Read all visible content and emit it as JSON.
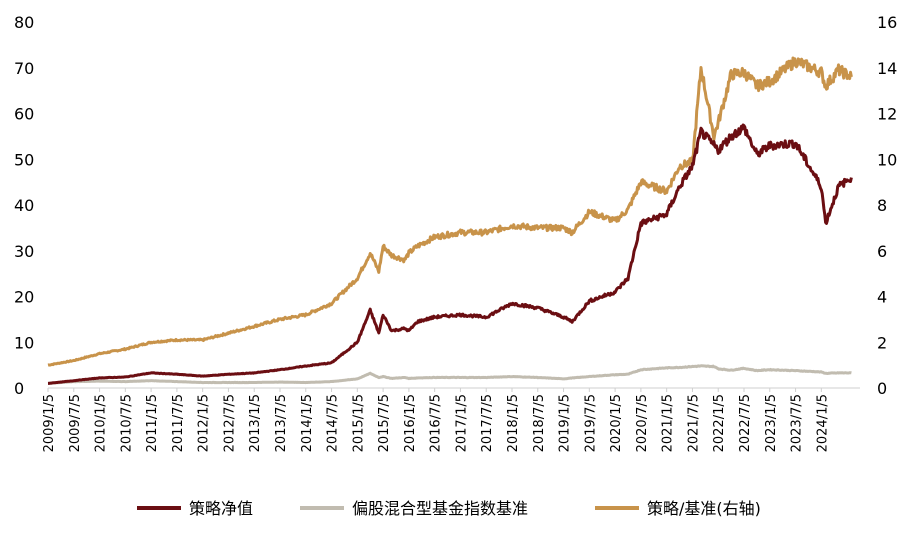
{
  "chart_data": {
    "type": "line",
    "title": "",
    "xlabel": "",
    "ylabel": "",
    "ylim": [
      0,
      80
    ],
    "ylim_right": [
      0,
      16
    ],
    "y_ticks": [
      "0",
      "10",
      "20",
      "30",
      "40",
      "50",
      "60",
      "70",
      "80"
    ],
    "y_right_ticks": [
      "0",
      "2",
      "4",
      "6",
      "8",
      "10",
      "12",
      "14",
      "16"
    ],
    "grid": false,
    "legend_position": "bottom",
    "x_tick_labels": [
      "2009/1/5",
      "2009/7/5",
      "2010/1/5",
      "2010/7/5",
      "2011/1/5",
      "2011/7/5",
      "2012/1/5",
      "2012/7/5",
      "2013/1/5",
      "2013/7/5",
      "2014/1/5",
      "2014/7/5",
      "2015/1/5",
      "2015/7/5",
      "2016/1/5",
      "2016/7/5",
      "2017/1/5",
      "2017/7/5",
      "2018/1/5",
      "2018/7/5",
      "2019/1/5",
      "2019/7/5",
      "2020/1/5",
      "2020/7/5",
      "2021/1/5",
      "2021/7/5",
      "2022/1/5",
      "2022/7/5",
      "2023/1/5",
      "2023/7/5",
      "2024/1/5"
    ],
    "x": [
      "2009-01",
      "2009-07",
      "2010-01",
      "2010-07",
      "2011-01",
      "2011-07",
      "2012-01",
      "2012-07",
      "2013-01",
      "2013-07",
      "2014-01",
      "2014-07",
      "2015-01",
      "2015-04",
      "2015-06",
      "2015-07",
      "2015-09",
      "2015-12",
      "2016-01",
      "2016-03",
      "2016-07",
      "2017-01",
      "2017-07",
      "2018-01",
      "2018-07",
      "2019-01",
      "2019-03",
      "2019-07",
      "2020-01",
      "2020-04",
      "2020-07",
      "2021-01",
      "2021-04",
      "2021-07",
      "2021-09",
      "2021-12",
      "2022-01",
      "2022-04",
      "2022-07",
      "2022-10",
      "2023-01",
      "2023-07",
      "2024-01",
      "2024-02",
      "2024-05",
      "2024-08"
    ],
    "series": [
      {
        "name": "策略净值",
        "color": "#6b0e12",
        "axis": "left",
        "values": [
          1.0,
          1.6,
          2.2,
          2.4,
          3.3,
          3.0,
          2.6,
          3.0,
          3.3,
          4.0,
          4.8,
          5.5,
          10.0,
          17.0,
          12.0,
          16.0,
          12.5,
          13.0,
          12.5,
          14.5,
          15.5,
          16.0,
          15.5,
          18.5,
          17.5,
          15.5,
          14.5,
          19.0,
          21.0,
          24.0,
          36.0,
          38.0,
          44.0,
          48.5,
          56.0,
          53.0,
          52.0,
          55.0,
          57.0,
          51.0,
          53.0,
          53.5,
          44.0,
          36.0,
          44.0,
          46.0
        ]
      },
      {
        "name": "偏股混合型基金指数基准",
        "color": "#c1bcb0",
        "axis": "left",
        "values": [
          1.0,
          1.4,
          1.5,
          1.4,
          1.6,
          1.4,
          1.2,
          1.2,
          1.2,
          1.3,
          1.2,
          1.4,
          2.0,
          3.2,
          2.3,
          2.5,
          2.1,
          2.3,
          2.1,
          2.2,
          2.3,
          2.3,
          2.3,
          2.5,
          2.3,
          2.0,
          2.2,
          2.5,
          2.9,
          3.0,
          4.0,
          4.4,
          4.5,
          4.7,
          4.8,
          4.7,
          4.2,
          3.9,
          4.3,
          3.8,
          4.0,
          3.8,
          3.5,
          3.2,
          3.3,
          3.3
        ]
      },
      {
        "name": "策略/基准(右轴)",
        "color": "#c8934a",
        "axis": "right",
        "values": [
          1.0,
          1.2,
          1.5,
          1.7,
          2.0,
          2.1,
          2.1,
          2.4,
          2.7,
          3.0,
          3.2,
          3.7,
          4.8,
          5.9,
          5.1,
          6.2,
          5.8,
          5.6,
          5.9,
          6.2,
          6.6,
          6.8,
          6.8,
          7.1,
          7.0,
          7.0,
          6.8,
          7.7,
          7.3,
          7.8,
          9.0,
          8.6,
          9.7,
          9.9,
          14.0,
          11.0,
          11.6,
          13.7,
          13.8,
          13.2,
          13.4,
          14.3,
          13.8,
          13.2,
          13.9,
          13.6
        ]
      }
    ]
  }
}
